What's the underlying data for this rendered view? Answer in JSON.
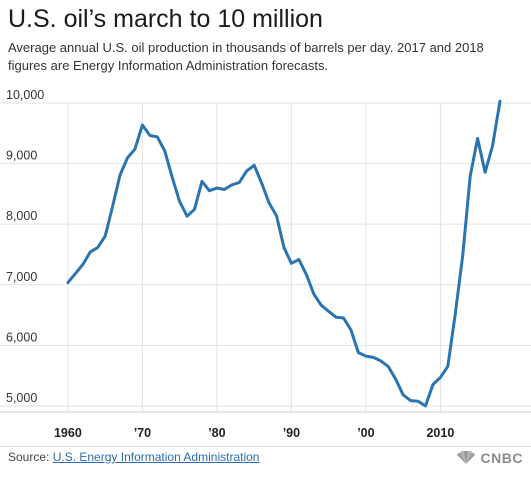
{
  "title": "U.S. oil’s march to 10 million",
  "subtitle": "Average annual U.S. oil production in thousands of barrels per day. 2017 and 2018 figures are Energy Information Administration forecasts.",
  "source": {
    "label": "Source:",
    "link_text": "U.S. Energy Information Administration",
    "link_color": "#2b6cb0"
  },
  "logo": {
    "text": "CNBC",
    "icon": "peacock-icon"
  },
  "chart_data": {
    "type": "line",
    "title": "U.S. oil’s march to 10 million",
    "xlabel": "",
    "ylabel": "",
    "xlim": [
      1958,
      2018
    ],
    "ylim": [
      4900,
      10000
    ],
    "x_ticks": [
      1960,
      1970,
      1980,
      1990,
      2000,
      2010
    ],
    "x_tick_labels": [
      "1960",
      "’70",
      "’80",
      "’90",
      "’00",
      "2010"
    ],
    "y_ticks": [
      5000,
      6000,
      7000,
      8000,
      9000,
      10000
    ],
    "y_tick_labels": [
      "5,000",
      "6,000",
      "7,000",
      "8,000",
      "9,000",
      "10,000"
    ],
    "grid": "vertical and horizontal",
    "line_color": "#2a74b0",
    "series": [
      {
        "x": [
          1960,
          1961,
          1962,
          1963,
          1964,
          1965,
          1966,
          1967,
          1968,
          1969,
          1970,
          1971,
          1972,
          1973,
          1974,
          1975,
          1976,
          1977,
          1978,
          1979,
          1980,
          1981,
          1982,
          1983,
          1984,
          1985,
          1986,
          1987,
          1988,
          1989,
          1990,
          1991,
          1992,
          1993,
          1994,
          1995,
          1996,
          1997,
          1998,
          1999,
          2000,
          2001,
          2002,
          2003,
          2004,
          2005,
          2006,
          2007,
          2008,
          2009,
          2010,
          2011,
          2012,
          2013,
          2014,
          2015,
          2016,
          2017,
          2018
        ],
        "y": [
          7035,
          7183,
          7332,
          7542,
          7614,
          7804,
          8295,
          8810,
          9096,
          9238,
          9637,
          9463,
          9441,
          9208,
          8774,
          8375,
          8132,
          8245,
          8707,
          8552,
          8597,
          8572,
          8649,
          8688,
          8879,
          8971,
          8680,
          8349,
          8140,
          7613,
          7355,
          7417,
          7171,
          6847,
          6662,
          6560,
          6465,
          6452,
          6252,
          5881,
          5822,
          5801,
          5744,
          5649,
          5441,
          5184,
          5088,
          5077,
          5000,
          5353,
          5471,
          5652,
          6523,
          7494,
          8793,
          9415,
          8856,
          9290,
          10030
        ]
      }
    ]
  }
}
